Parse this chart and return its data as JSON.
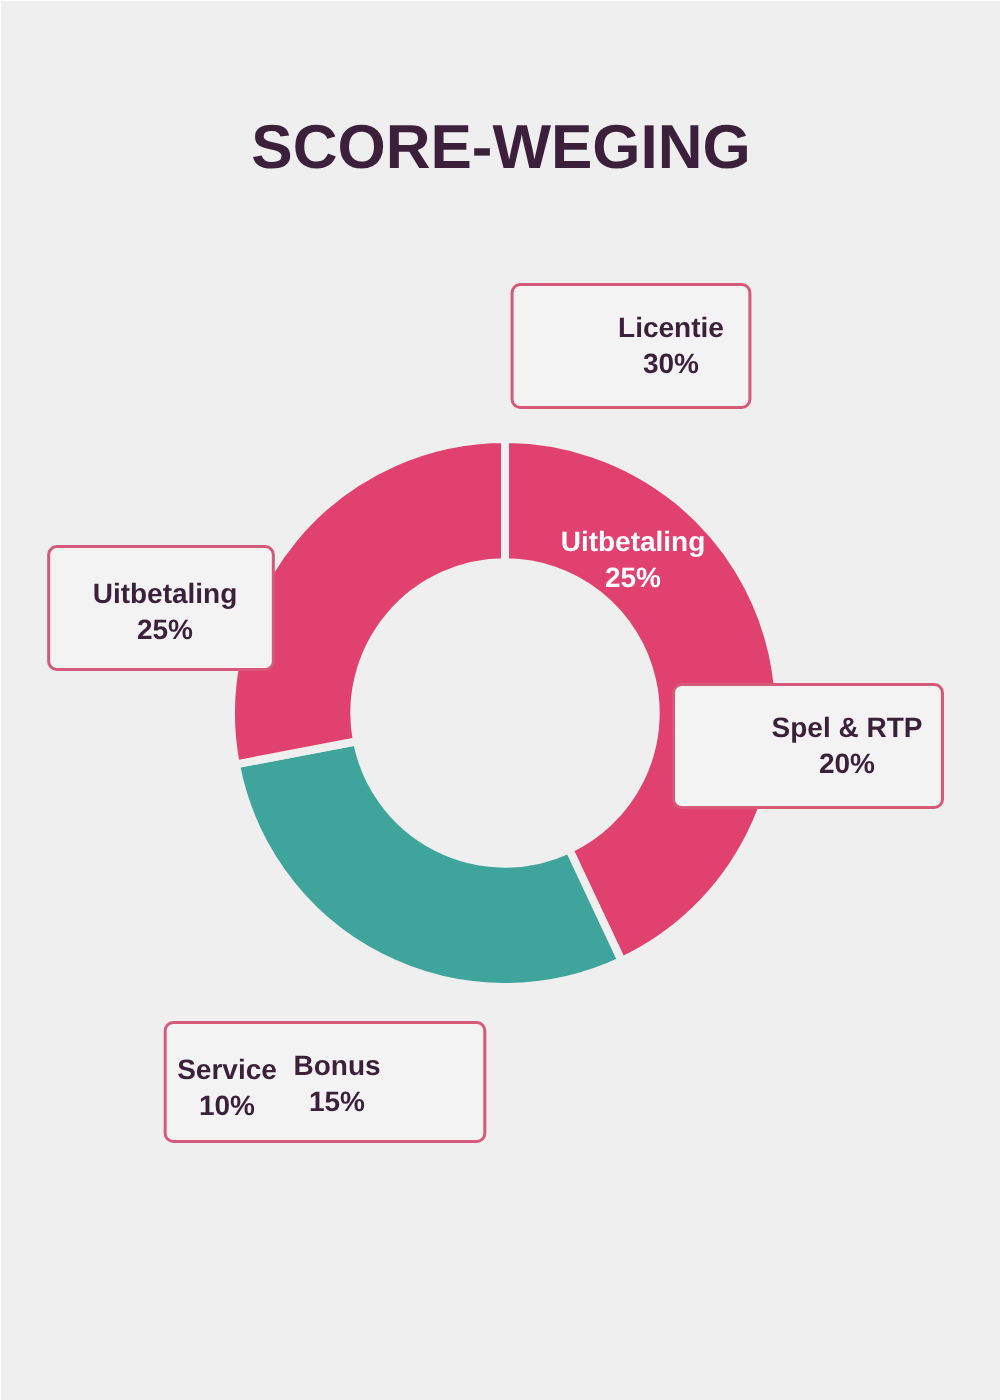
{
  "chart_data": {
    "type": "donut",
    "title": "SCORE-WEGING",
    "categories": [
      null,
      null,
      null
    ],
    "values": [
      43,
      29,
      28
    ],
    "colors": [
      "#e0416f",
      "#3fa59c",
      "#e0416f"
    ],
    "annotations": [
      "Licentie\n30%",
      "Uitbetaling\n25%",
      "Uitbetaling\n25%",
      "Spel & RTP\n20%",
      "Service\n10%",
      "Bonus\n15%"
    ]
  }
}
